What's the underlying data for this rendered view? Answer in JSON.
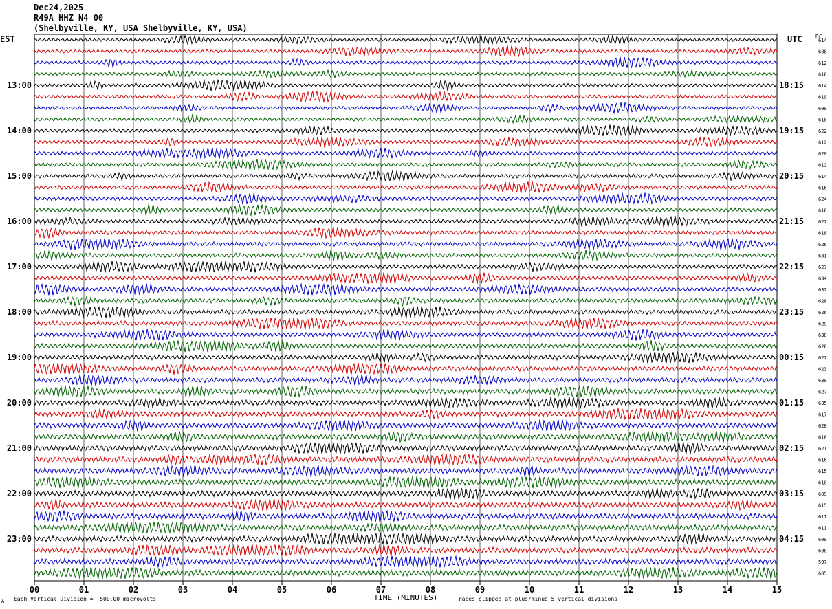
{
  "header": {
    "date": "Dec24,2025",
    "station": "R49A HHZ N4 00",
    "location": "(Shelbyville, KY, USA Shelbyville, KY, USA)"
  },
  "left_axis_label": "EST",
  "right_axis_label": "UTC",
  "dc_label": "DC",
  "footer": {
    "vertical_division": "Each Vertical Division =  500.00 microvolts",
    "clip_note": "Traces clipped at plus/minus 5 vertical divisions",
    "corner_mark": "A"
  },
  "colors": {
    "trace_cycle": [
      "#000000",
      "#d00000",
      "#0000c8",
      "#006000"
    ],
    "gridline": "#000000"
  },
  "chart_data": {
    "type": "line",
    "title": "",
    "xlabel": "TIME (MINUTES)",
    "x_ticks": [
      "00",
      "01",
      "02",
      "03",
      "04",
      "05",
      "06",
      "07",
      "08",
      "09",
      "10",
      "11",
      "12",
      "13",
      "14",
      "15"
    ],
    "xlim": [
      0,
      15
    ],
    "traces_per_hour": 4,
    "left_hour_labels": [
      "13:00",
      "14:00",
      "15:00",
      "16:00",
      "17:00",
      "18:00",
      "19:00",
      "20:00",
      "21:00",
      "22:00",
      "23:00"
    ],
    "right_hour_labels": [
      "18:15",
      "19:15",
      "20:15",
      "21:15",
      "22:15",
      "23:15",
      "00:15",
      "01:15",
      "02:15",
      "03:15",
      "04:15"
    ],
    "dc_offsets": [
      614,
      608,
      612,
      618,
      614,
      619,
      609,
      618,
      622,
      612,
      620,
      612,
      614,
      616,
      624,
      618,
      627,
      618,
      626,
      631,
      627,
      634,
      632,
      628,
      626,
      629,
      638,
      628,
      627,
      623,
      630,
      627,
      635,
      617,
      628,
      618,
      621,
      616,
      615,
      610,
      609,
      615,
      611,
      611,
      609,
      600,
      597,
      605
    ],
    "grid": "vertical minute lines"
  }
}
